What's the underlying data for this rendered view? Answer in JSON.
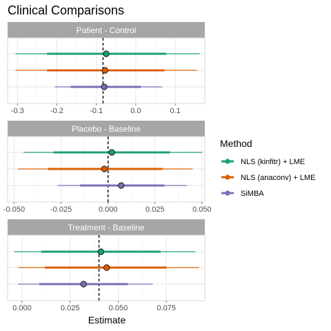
{
  "chart_data": {
    "type": "forest",
    "title": "Clinical Comparisons",
    "xlabel": "Estimate",
    "legend": {
      "title": "Method",
      "position": "right"
    },
    "series": [
      {
        "name": "NLS (kinfitr) + LME",
        "color": "#1b9e77"
      },
      {
        "name": "NLS (anaconv) + LME",
        "color": "#d95f02"
      },
      {
        "name": "SiMBA",
        "color": "#7570b3"
      }
    ],
    "panels": [
      {
        "label": "Patient - Control",
        "xlim": [
          -0.325,
          0.175
        ],
        "ticks": [
          -0.3,
          -0.2,
          -0.1,
          0.0,
          0.1
        ],
        "tick_labels": [
          "-0.3",
          "-0.2",
          "-0.1",
          "0.0",
          "0.1"
        ],
        "reference": -0.083,
        "rows": [
          {
            "series": 0,
            "estimate": -0.075,
            "inner": [
              -0.225,
              0.077
            ],
            "outer": [
              -0.305,
              0.162
            ]
          },
          {
            "series": 1,
            "estimate": -0.078,
            "inner": [
              -0.225,
              0.073
            ],
            "outer": [
              -0.305,
              0.155
            ]
          },
          {
            "series": 2,
            "estimate": -0.08,
            "inner": [
              -0.165,
              0.013
            ],
            "outer": [
              -0.205,
              0.067
            ]
          }
        ]
      },
      {
        "label": "Placebo - Baseline",
        "xlim": [
          -0.0535,
          0.0515
        ],
        "ticks": [
          -0.05,
          -0.025,
          0.0,
          0.025,
          0.05
        ],
        "tick_labels": [
          "-0.050",
          "-0.025",
          "0.000",
          "0.025",
          "0.050"
        ],
        "reference": 0.0,
        "rows": [
          {
            "series": 0,
            "estimate": 0.002,
            "inner": [
              -0.029,
              0.033
            ],
            "outer": [
              -0.045,
              0.05
            ]
          },
          {
            "series": 1,
            "estimate": -0.002,
            "inner": [
              -0.032,
              0.029
            ],
            "outer": [
              -0.048,
              0.045
            ]
          },
          {
            "series": 2,
            "estimate": 0.007,
            "inner": [
              -0.015,
              0.03
            ],
            "outer": [
              -0.027,
              0.042
            ]
          }
        ]
      },
      {
        "label": "Treatment - Baseline",
        "xlim": [
          -0.0075,
          0.095
        ],
        "ticks": [
          0.0,
          0.025,
          0.05,
          0.075
        ],
        "tick_labels": [
          "0.000",
          "0.025",
          "0.050",
          "0.075"
        ],
        "reference": 0.04,
        "rows": [
          {
            "series": 0,
            "estimate": 0.041,
            "inner": [
              0.01,
              0.072
            ],
            "outer": [
              -0.004,
              0.09
            ]
          },
          {
            "series": 1,
            "estimate": 0.044,
            "inner": [
              0.012,
              0.075
            ],
            "outer": [
              -0.002,
              0.092
            ]
          },
          {
            "series": 2,
            "estimate": 0.032,
            "inner": [
              0.009,
              0.055
            ],
            "outer": [
              -0.002,
              0.068
            ]
          }
        ]
      }
    ]
  }
}
